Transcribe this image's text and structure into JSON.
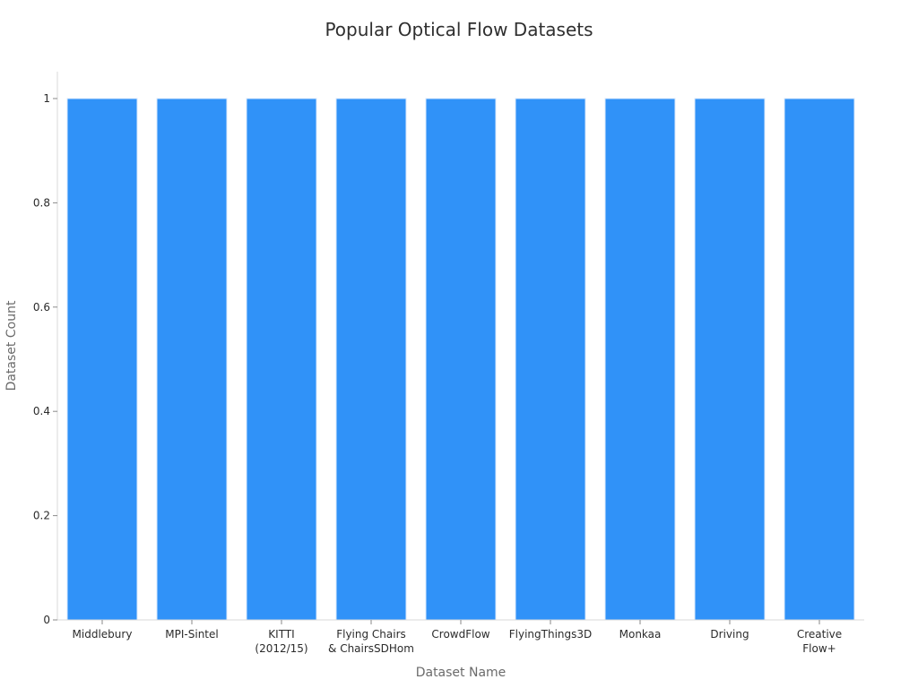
{
  "chart_data": {
    "type": "bar",
    "title": "Popular Optical Flow Datasets",
    "xlabel": "Dataset Name",
    "ylabel": "Dataset Count",
    "categories": [
      "Middlebury",
      "MPI-Sintel",
      "KITTI (2012/15)",
      "Flying Chairs & ChairsSDHom",
      "CrowdFlow",
      "FlyingThings3D",
      "Monkaa",
      "Driving",
      "Creative Flow+"
    ],
    "category_label_lines": [
      [
        "Middlebury"
      ],
      [
        "MPI-Sintel"
      ],
      [
        "KITTI",
        "(2012/15)"
      ],
      [
        "Flying Chairs",
        "& ChairsSDHom"
      ],
      [
        "CrowdFlow"
      ],
      [
        "FlyingThings3D"
      ],
      [
        "Monkaa"
      ],
      [
        "Driving"
      ],
      [
        "Creative",
        "Flow+"
      ]
    ],
    "values": [
      1,
      1,
      1,
      1,
      1,
      1,
      1,
      1,
      1
    ],
    "ylim": [
      0,
      1.05
    ],
    "yticks": [
      0,
      0.2,
      0.4,
      0.6,
      0.8,
      1
    ],
    "ytick_labels": [
      "0",
      "0.2",
      "0.4",
      "0.6",
      "0.8",
      "1"
    ],
    "grid": false,
    "legend": false,
    "colors": {
      "bar": "#3092f8",
      "bar_edge": "#d9e8fb",
      "axis": "#d8d8d8",
      "tick": "#8a8a8a"
    }
  }
}
